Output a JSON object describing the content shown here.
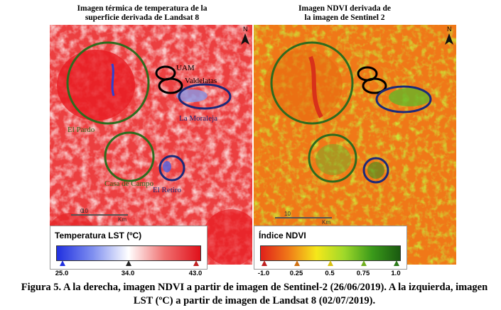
{
  "left": {
    "title": "Imagen térmica de temperatura de la\nsuperficie derivada de Landsat 8",
    "legend_title": "Temperatura LST (ºC)",
    "ticks": [
      "25.0",
      "34.0",
      "43.0"
    ],
    "labels": {
      "uam": "UAM",
      "valdelatas": "Valdelatas",
      "la_moraleja": "La Moraleja",
      "el_pardo": "El Pardo",
      "casa_de_campo": "Casa de Campo",
      "el_retiro": "El Retiro"
    },
    "scale_0": "0",
    "scale_10": "10",
    "scale_unit": "Km",
    "north": "N"
  },
  "right": {
    "title": "Imagen NDVI derivada de\nla imagen de Sentinel 2",
    "legend_title": "Índice NDVI",
    "ticks": [
      "-1.0",
      "0.25",
      "0.5",
      "0.75",
      "1.0"
    ],
    "scale_0": "0",
    "scale_10": "10",
    "scale_unit": "Km",
    "north": "N"
  },
  "caption": "Figura 5. A la derecha, imagen NDVI a partir de imagen de Sentinel-2 (26/06/2019). A la izquierda, imagen LST (ºC) a partir de imagen de Landsat 8 (02/07/2019).",
  "colors": {
    "green_circle": "#2e6b1e",
    "black_circle": "#000000",
    "blue_circle": "#1b2a7a",
    "lst_hot": "#e8141c",
    "lst_cool": "#2a3ad8",
    "ndvi_low": "#e83a10",
    "ndvi_high": "#1f7a12"
  }
}
